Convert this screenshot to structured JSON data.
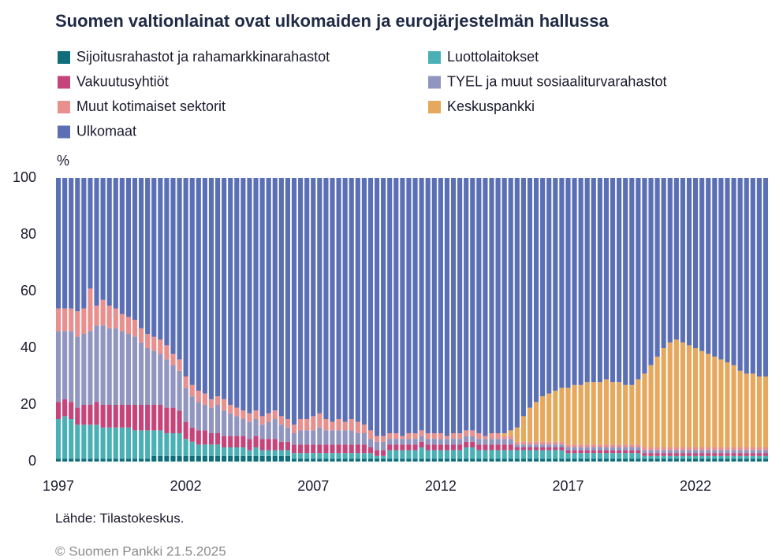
{
  "chart_data": {
    "type": "stacked-bar",
    "title": "Suomen valtionlainat ovat ulkomaiden ja eurojärjestelmän hallussa",
    "y_label": "%",
    "source": "Lähde: Tilastokeskus.",
    "copyright": "© Suomen Pankki 21.5.2025",
    "ylim": [
      0,
      100
    ],
    "yticks": [
      0,
      20,
      40,
      60,
      80,
      100
    ],
    "categories": [
      "1997",
      null,
      null,
      null,
      null,
      null,
      null,
      null,
      null,
      null,
      null,
      null,
      null,
      null,
      null,
      null,
      null,
      null,
      null,
      null,
      "2002",
      null,
      null,
      null,
      null,
      null,
      null,
      null,
      null,
      null,
      null,
      null,
      null,
      null,
      null,
      null,
      null,
      null,
      null,
      null,
      "2007",
      null,
      null,
      null,
      null,
      null,
      null,
      null,
      null,
      null,
      null,
      null,
      null,
      null,
      null,
      null,
      null,
      null,
      null,
      null,
      "2012",
      null,
      null,
      null,
      null,
      null,
      null,
      null,
      null,
      null,
      null,
      null,
      null,
      null,
      null,
      null,
      null,
      null,
      null,
      null,
      "2017",
      null,
      null,
      null,
      null,
      null,
      null,
      null,
      null,
      null,
      null,
      null,
      null,
      null,
      null,
      null,
      null,
      null,
      null,
      null,
      "2022",
      null,
      null,
      null,
      null,
      null,
      null,
      null,
      null,
      null,
      null,
      null
    ],
    "series": [
      {
        "name": "Sijoitusrahastot ja rahamarkkinarahastot",
        "color": "#0f6e7a",
        "values": [
          1,
          1,
          1,
          1,
          1,
          1,
          1,
          1,
          1,
          1,
          1,
          1,
          1,
          1,
          1,
          2,
          2,
          2,
          2,
          2,
          2,
          2,
          2,
          2,
          2,
          2,
          2,
          2,
          2,
          2,
          2,
          2,
          2,
          2,
          2,
          2,
          2,
          1,
          1,
          1,
          1,
          1,
          1,
          1,
          1,
          1,
          1,
          1,
          1,
          1,
          1,
          1,
          1,
          1,
          1,
          1,
          1,
          1,
          1,
          1,
          1,
          1,
          1,
          1,
          1,
          1,
          1,
          1,
          1,
          1,
          1,
          1,
          1,
          1,
          1,
          1,
          1,
          1,
          1,
          1,
          1,
          1,
          1,
          1,
          1,
          1,
          1,
          1,
          1,
          1,
          1,
          1,
          1,
          1,
          1,
          1,
          1,
          1,
          1,
          1,
          1,
          1,
          1,
          1,
          1,
          1,
          1,
          1,
          1,
          1,
          1,
          1
        ]
      },
      {
        "name": "Luottolaitokset",
        "color": "#4bb0b5",
        "values": [
          14,
          15,
          14,
          12,
          12,
          12,
          12,
          11,
          11,
          11,
          11,
          11,
          10,
          10,
          10,
          9,
          9,
          8,
          8,
          8,
          6,
          5,
          4,
          4,
          4,
          4,
          3,
          3,
          3,
          3,
          2,
          3,
          2,
          2,
          2,
          2,
          2,
          2,
          2,
          2,
          2,
          2,
          2,
          2,
          2,
          2,
          2,
          2,
          2,
          2,
          1,
          1,
          3,
          3,
          3,
          3,
          3,
          4,
          3,
          3,
          3,
          3,
          3,
          3,
          4,
          4,
          3,
          3,
          3,
          3,
          3,
          3,
          3,
          3,
          3,
          3,
          3,
          3,
          3,
          3,
          2,
          2,
          2,
          2,
          2,
          2,
          2,
          2,
          2,
          2,
          2,
          2,
          1,
          1,
          1,
          1,
          1,
          1,
          1,
          1,
          1,
          1,
          1,
          1,
          1,
          1,
          1,
          1,
          1,
          1,
          1,
          1
        ]
      },
      {
        "name": "Vakuutusyhtiöt",
        "color": "#c5457a",
        "values": [
          6,
          6,
          6,
          6,
          7,
          7,
          8,
          8,
          8,
          8,
          8,
          8,
          9,
          9,
          9,
          9,
          9,
          9,
          9,
          8,
          6,
          5,
          5,
          5,
          4,
          4,
          4,
          4,
          4,
          4,
          4,
          4,
          4,
          4,
          4,
          3,
          3,
          3,
          3,
          3,
          3,
          3,
          3,
          3,
          3,
          3,
          3,
          3,
          3,
          2,
          2,
          2,
          2,
          2,
          2,
          2,
          2,
          2,
          2,
          2,
          2,
          2,
          2,
          2,
          2,
          2,
          2,
          2,
          2,
          2,
          2,
          2,
          1,
          1,
          1,
          1,
          1,
          1,
          1,
          1,
          1,
          1,
          1,
          1,
          1,
          1,
          1,
          1,
          1,
          1,
          1,
          1,
          1,
          1,
          1,
          1,
          1,
          1,
          1,
          1,
          1,
          1,
          1,
          1,
          1,
          1,
          1,
          1,
          1,
          1,
          1,
          1
        ]
      },
      {
        "name": "TYEL ja muut sosiaaliturvarahastot",
        "color": "#9096bf",
        "values": [
          25,
          24,
          25,
          25,
          25,
          26,
          27,
          28,
          27,
          27,
          26,
          25,
          24,
          22,
          20,
          19,
          18,
          17,
          15,
          14,
          12,
          11,
          10,
          9,
          9,
          10,
          9,
          8,
          7,
          6,
          6,
          6,
          5,
          6,
          7,
          6,
          5,
          4,
          5,
          5,
          5,
          6,
          5,
          5,
          5,
          5,
          5,
          4,
          4,
          3,
          3,
          3,
          2,
          2,
          2,
          2,
          2,
          2,
          2,
          2,
          2,
          2,
          2,
          2,
          2,
          2,
          2,
          2,
          2,
          2,
          2,
          2,
          1,
          1,
          1,
          1,
          1,
          1,
          1,
          1,
          1,
          1,
          1,
          1,
          1,
          1,
          1,
          1,
          1,
          1,
          1,
          1,
          1,
          1,
          1,
          1,
          1,
          1,
          1,
          1,
          1,
          1,
          1,
          1,
          1,
          1,
          1,
          1,
          1,
          1,
          1,
          1
        ]
      },
      {
        "name": "Muut kotimaiset sektorit",
        "color": "#e8908e",
        "values": [
          8,
          8,
          8,
          9,
          9,
          15,
          7,
          9,
          8,
          7,
          6,
          6,
          6,
          5,
          5,
          5,
          5,
          5,
          4,
          4,
          4,
          4,
          4,
          4,
          3,
          3,
          4,
          3,
          3,
          3,
          3,
          3,
          3,
          3,
          3,
          3,
          3,
          3,
          4,
          4,
          5,
          5,
          4,
          3,
          4,
          3,
          4,
          4,
          3,
          3,
          2,
          2,
          2,
          2,
          1,
          2,
          2,
          2,
          2,
          2,
          2,
          1,
          2,
          2,
          2,
          2,
          2,
          1,
          2,
          2,
          1,
          1,
          1,
          1,
          1,
          1,
          1,
          1,
          1,
          1,
          1,
          1,
          1,
          1,
          1,
          1,
          1,
          1,
          1,
          1,
          1,
          1,
          1,
          1,
          1,
          1,
          1,
          1,
          1,
          1,
          1,
          1,
          1,
          1,
          1,
          1,
          1,
          1,
          1,
          1,
          1,
          1
        ]
      },
      {
        "name": "Keskuspankki",
        "color": "#e6a85c",
        "values": [
          0,
          0,
          0,
          0,
          0,
          0,
          0,
          0,
          0,
          0,
          0,
          0,
          0,
          0,
          0,
          0,
          0,
          0,
          0,
          0,
          0,
          0,
          0,
          0,
          0,
          0,
          0,
          0,
          0,
          0,
          0,
          0,
          0,
          0,
          0,
          0,
          0,
          0,
          0,
          0,
          0,
          0,
          0,
          0,
          0,
          0,
          0,
          0,
          0,
          0,
          0,
          0,
          0,
          0,
          0,
          0,
          0,
          0,
          0,
          0,
          0,
          0,
          0,
          0,
          0,
          0,
          0,
          0,
          0,
          0,
          1,
          2,
          5,
          9,
          12,
          14,
          16,
          17,
          18,
          19,
          20,
          21,
          21,
          22,
          22,
          22,
          23,
          22,
          22,
          21,
          21,
          23,
          26,
          29,
          32,
          35,
          37,
          38,
          37,
          36,
          35,
          34,
          33,
          32,
          31,
          30,
          29,
          27,
          26,
          26,
          25,
          25
        ]
      },
      {
        "name": "Ulkomaat",
        "color": "#5b6fb5",
        "values": [
          46,
          46,
          46,
          47,
          46,
          39,
          45,
          43,
          45,
          46,
          48,
          49,
          50,
          53,
          55,
          56,
          57,
          59,
          62,
          64,
          70,
          73,
          75,
          76,
          78,
          77,
          78,
          80,
          81,
          82,
          83,
          82,
          84,
          83,
          82,
          84,
          85,
          87,
          85,
          85,
          84,
          83,
          85,
          86,
          85,
          86,
          85,
          86,
          87,
          89,
          91,
          91,
          90,
          90,
          91,
          90,
          90,
          89,
          90,
          90,
          90,
          91,
          90,
          90,
          89,
          89,
          90,
          91,
          90,
          90,
          90,
          89,
          88,
          84,
          81,
          79,
          77,
          76,
          75,
          74,
          74,
          73,
          73,
          72,
          72,
          72,
          71,
          72,
          72,
          73,
          73,
          71,
          69,
          66,
          63,
          60,
          58,
          57,
          58,
          59,
          60,
          61,
          62,
          63,
          64,
          65,
          66,
          68,
          69,
          69,
          70,
          70
        ]
      }
    ]
  }
}
